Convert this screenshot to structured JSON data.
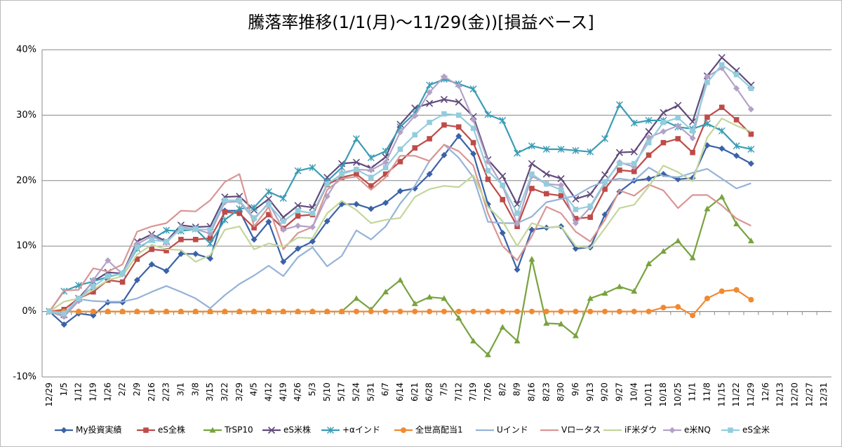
{
  "chart_data": {
    "type": "line",
    "title": "騰落率推移(1/1(月)～11/29(金))[損益ベース]",
    "categories": [
      "12/29",
      "1/5",
      "1/12",
      "1/19",
      "1/26",
      "2/2",
      "2/9",
      "2/16",
      "2/23",
      "3/1",
      "3/8",
      "3/15",
      "3/22",
      "3/29",
      "4/5",
      "4/12",
      "4/19",
      "4/26",
      "5/3",
      "5/10",
      "5/17",
      "5/24",
      "5/31",
      "6/7",
      "6/14",
      "6/21",
      "6/28",
      "7/5",
      "7/12",
      "7/19",
      "7/26",
      "8/2",
      "8/9",
      "8/16",
      "8/23",
      "8/30",
      "9/6",
      "9/13",
      "9/20",
      "9/27",
      "10/4",
      "10/11",
      "10/18",
      "10/25",
      "11/1",
      "11/8",
      "11/15",
      "11/22",
      "11/29",
      "12/6",
      "12/13",
      "12/20",
      "12/27",
      "12/31"
    ],
    "ylim": [
      -10,
      40
    ],
    "yticks": [
      {
        "value": -10,
        "label": "-10%"
      },
      {
        "value": 0,
        "label": "0%"
      },
      {
        "value": 10,
        "label": "10%"
      },
      {
        "value": 20,
        "label": "20%"
      },
      {
        "value": 30,
        "label": "30%"
      },
      {
        "value": 40,
        "label": "40%"
      }
    ],
    "grid": true,
    "legend": "bottom",
    "series": [
      {
        "name": "My投資実績",
        "color": "#3a62a7",
        "marker": "diamond",
        "values": [
          0,
          -2,
          -0.3,
          -0.6,
          1.4,
          1.4,
          4.8,
          7.2,
          6.2,
          8.8,
          8.8,
          8.1,
          15.4,
          15.4,
          11,
          13.7,
          7.6,
          9.6,
          10.7,
          13.8,
          16.4,
          16.4,
          15.7,
          16.6,
          18.4,
          18.8,
          21,
          23.9,
          26.8,
          24.1,
          16.4,
          12,
          6.4,
          12.5,
          12.8,
          13,
          9.6,
          9.8,
          14.8,
          18.3,
          20,
          20.3,
          21,
          20.2,
          20.4,
          25.4,
          24.9,
          23.8,
          22.6,
          null,
          null,
          null,
          null,
          null
        ]
      },
      {
        "name": "eS全株",
        "color": "#be4b48",
        "marker": "square",
        "values": [
          0,
          0.3,
          2,
          3,
          4.8,
          4.5,
          8,
          9.5,
          9.3,
          11,
          11,
          11.2,
          15.2,
          15,
          12.8,
          14.8,
          12.7,
          14.6,
          14.8,
          19.4,
          20.5,
          21,
          19.2,
          21,
          22.9,
          25,
          26.4,
          28.5,
          28.2,
          25.8,
          20.2,
          17.1,
          13,
          18.8,
          18,
          17.7,
          14.2,
          14.4,
          18.7,
          21.6,
          21.4,
          23.9,
          25.8,
          26.4,
          24.3,
          29.7,
          31.2,
          29.3,
          27.1,
          null,
          null,
          null,
          null,
          null
        ]
      },
      {
        "name": "TrSP10",
        "color": "#77a33d",
        "marker": "triangle",
        "values": [
          0,
          0,
          0,
          0,
          0,
          0,
          0,
          0,
          0,
          0,
          0,
          0,
          0,
          0,
          0,
          0,
          0,
          0,
          0,
          0,
          0,
          2,
          0.3,
          3,
          4.8,
          1.2,
          2.2,
          2,
          -1,
          -4.5,
          -6.6,
          -2.4,
          -4.5,
          8,
          -1.8,
          -1.9,
          -3.7,
          2,
          2.8,
          3.8,
          3.1,
          7.3,
          9.2,
          10.8,
          8.2,
          15.7,
          17.5,
          13.4,
          10.8,
          null,
          null,
          null,
          null,
          null
        ]
      },
      {
        "name": "eS米株",
        "color": "#604a7b",
        "marker": "x",
        "values": [
          0,
          -0.5,
          2,
          4.6,
          6,
          5.8,
          10.7,
          11.8,
          10.7,
          13.2,
          12.9,
          13,
          17.5,
          17.6,
          15.5,
          17.2,
          14.4,
          16.2,
          15.9,
          20.5,
          22.6,
          22.8,
          21.9,
          23.6,
          28.6,
          31.1,
          31.8,
          32.4,
          32,
          29.8,
          23.2,
          20.7,
          16.4,
          22.6,
          21,
          20.3,
          17.2,
          17.9,
          20.9,
          24.3,
          24.4,
          27.5,
          30.4,
          31.5,
          29,
          36,
          38.8,
          36.8,
          34.6,
          null,
          null,
          null,
          null,
          null
        ]
      },
      {
        "name": "+αインド",
        "color": "#3a9cb5",
        "marker": "star",
        "values": [
          0,
          3.1,
          4,
          4.6,
          5.3,
          5.8,
          9.6,
          11,
          12.4,
          12.3,
          12.6,
          10.4,
          14,
          15.7,
          15.9,
          18.3,
          17.3,
          21.5,
          22,
          19.9,
          22,
          26.4,
          23.5,
          24.5,
          28.2,
          30.3,
          34.6,
          35.5,
          34.8,
          34,
          30.1,
          29.2,
          24.2,
          25.3,
          24.8,
          24.8,
          24.6,
          24.4,
          26.4,
          31.6,
          28.8,
          29.2,
          29.2,
          28.2,
          27.9,
          28.7,
          27.6,
          25.3,
          24.8,
          null,
          null,
          null,
          null,
          null
        ]
      },
      {
        "name": "全世高配当1",
        "color": "#f08a32",
        "marker": "circle",
        "values": [
          0,
          0,
          0,
          0,
          0,
          0,
          0,
          0,
          0,
          0,
          0,
          0,
          0,
          0,
          0,
          0,
          0,
          0,
          0,
          0,
          0,
          0,
          0,
          0,
          0,
          0,
          0,
          0,
          0,
          0,
          0,
          0,
          0,
          0,
          0,
          0,
          0,
          0,
          0,
          0,
          0,
          0,
          0.6,
          0.7,
          -0.6,
          2,
          3.1,
          3.3,
          1.8,
          null,
          null,
          null,
          null,
          null
        ]
      },
      {
        "name": "Uインド",
        "color": "#95b3d7",
        "marker": "none",
        "values": [
          0,
          -0.5,
          1.9,
          1.6,
          1.5,
          1.5,
          2,
          3,
          3.9,
          3,
          2,
          0.5,
          2.5,
          4.2,
          5.5,
          7,
          5.4,
          8.3,
          9.8,
          6.9,
          8.5,
          12.4,
          11,
          13,
          16.5,
          19.2,
          23,
          25.5,
          23.5,
          20.5,
          13.7,
          13.5,
          13.5,
          14.5,
          16.7,
          17.2,
          17.7,
          19,
          19.9,
          20.3,
          20,
          22,
          20.7,
          20.5,
          21.2,
          21.8,
          20.3,
          18.8,
          19.6,
          null,
          null,
          null,
          null,
          null
        ]
      },
      {
        "name": "Vロータス",
        "color": "#d99694",
        "marker": "none",
        "values": [
          0,
          3.2,
          3.3,
          6.6,
          6.1,
          7.2,
          12.2,
          13,
          13.5,
          15.4,
          15.3,
          17,
          19.8,
          21,
          13,
          16,
          9.5,
          12,
          12.9,
          18.6,
          20.3,
          20.6,
          18.6,
          20.5,
          23.8,
          23.8,
          23,
          25.5,
          24.5,
          22.3,
          15,
          10,
          7.8,
          11.5,
          16,
          15,
          12.2,
          10.7,
          14,
          18.5,
          17.7,
          19.4,
          18.5,
          15.8,
          17.8,
          17.8,
          16.2,
          14.2,
          13.1,
          null,
          null,
          null,
          null,
          null
        ]
      },
      {
        "name": "iF米ダウ",
        "color": "#c3d69b",
        "marker": "none",
        "values": [
          0,
          1.5,
          2,
          3.3,
          4.8,
          5.4,
          8.7,
          10.2,
          9.5,
          9.4,
          7.6,
          8.6,
          12.5,
          13,
          9.5,
          10.4,
          9.9,
          11.3,
          11.2,
          15,
          16.9,
          15.5,
          13.5,
          14,
          14.3,
          17.5,
          18.7,
          19.2,
          19,
          20.8,
          16,
          13.8,
          10,
          13.5,
          12.8,
          13,
          10,
          9.7,
          12.7,
          15.8,
          16.3,
          19.1,
          22.3,
          21.3,
          19.9,
          26.6,
          29.5,
          28.4,
          27.5,
          null,
          null,
          null,
          null,
          null
        ]
      },
      {
        "name": "e米NQ",
        "color": "#b3a2c7",
        "marker": "diamond",
        "values": [
          0,
          -0.8,
          1.6,
          4.8,
          7.8,
          5.7,
          10.3,
          11.5,
          10.5,
          12.9,
          12.6,
          11.9,
          16.7,
          16.8,
          14.1,
          16.6,
          12.5,
          13.1,
          12.9,
          17.6,
          21.2,
          21.7,
          21.6,
          22.8,
          27.4,
          29.9,
          33.5,
          35.9,
          34.5,
          29.3,
          22.9,
          19.2,
          13.4,
          20.7,
          19.5,
          19.3,
          13.5,
          15.9,
          19.6,
          22.8,
          22.1,
          26.6,
          27.5,
          28.4,
          26.5,
          35.9,
          37.2,
          34.1,
          30.9,
          null,
          null,
          null,
          null,
          null
        ]
      },
      {
        "name": "eS全米",
        "color": "#93cddd",
        "marker": "square",
        "values": [
          0,
          -0.3,
          2,
          3.8,
          5.4,
          5.8,
          9.8,
          10.9,
          10.7,
          12.6,
          12.6,
          12.5,
          17,
          17,
          14.3,
          16.4,
          13.8,
          15.4,
          15,
          19.5,
          21,
          21.7,
          20.5,
          22,
          24.8,
          27,
          28.9,
          30.2,
          30,
          28,
          21.5,
          19.3,
          15,
          21,
          19.5,
          18.6,
          15.6,
          16.1,
          19.8,
          22.6,
          22.6,
          25.8,
          28.9,
          29.6,
          27.6,
          35,
          37.7,
          36.2,
          34.1,
          null,
          null,
          null,
          null,
          null
        ]
      }
    ]
  }
}
